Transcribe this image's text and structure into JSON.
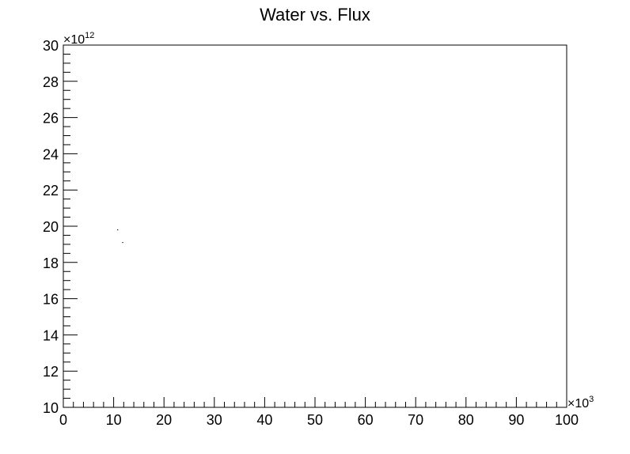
{
  "chart_data": {
    "type": "scatter",
    "title": "Water vs. Flux",
    "xlabel": "",
    "ylabel": "",
    "x_multiplier_label": "×10",
    "x_multiplier_exp": "3",
    "y_multiplier_label": "×10",
    "y_multiplier_exp": "12",
    "xlim": [
      0,
      100
    ],
    "ylim": [
      10,
      30
    ],
    "x_ticks": [
      0,
      10,
      20,
      30,
      40,
      50,
      60,
      70,
      80,
      90,
      100
    ],
    "y_ticks": [
      10,
      12,
      14,
      16,
      18,
      20,
      22,
      24,
      26,
      28,
      30
    ],
    "grid": false,
    "series": [
      {
        "color": "#000000",
        "points": [
          {
            "x": 10.8,
            "y": 19.8
          },
          {
            "x": 11.8,
            "y": 19.1
          }
        ]
      }
    ]
  }
}
